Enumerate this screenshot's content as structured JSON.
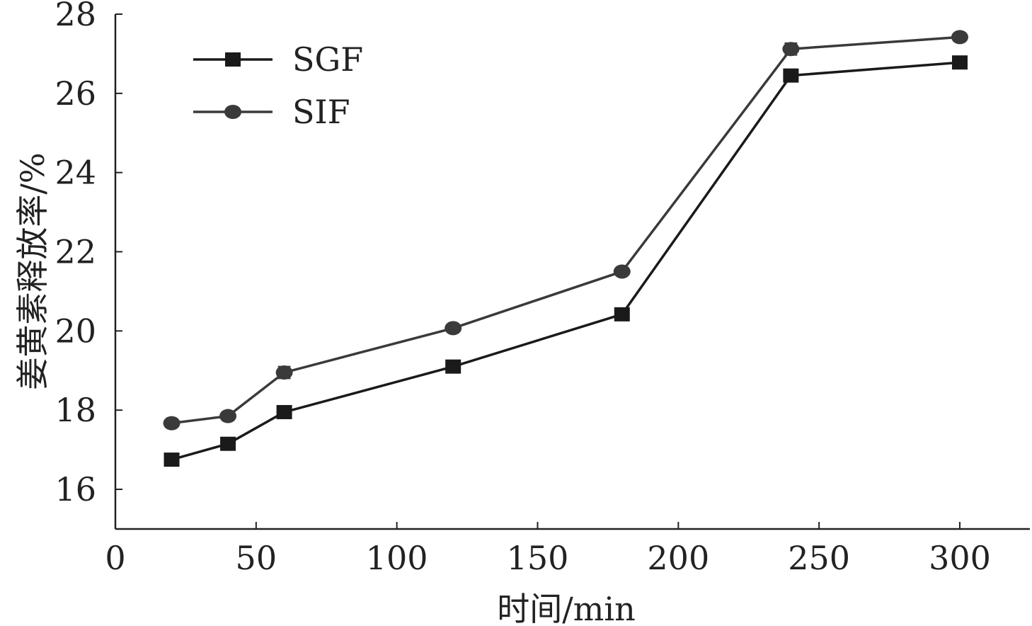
{
  "chart_data": {
    "type": "line",
    "title": "",
    "xlabel": "时间/min",
    "ylabel": "姜黄素释放率/%",
    "xlim": [
      0,
      325
    ],
    "ylim": [
      15,
      28
    ],
    "xticks": [
      0,
      50,
      100,
      150,
      200,
      250,
      300
    ],
    "yticks": [
      16,
      18,
      20,
      22,
      24,
      26,
      28
    ],
    "grid": false,
    "legend_position": "top-left",
    "x": [
      20,
      40,
      60,
      120,
      180,
      240,
      300
    ],
    "series": [
      {
        "name": "SGF",
        "marker": "square",
        "color": "#1a1a1a",
        "values": [
          16.75,
          17.15,
          17.95,
          19.1,
          20.42,
          26.45,
          26.78
        ],
        "errors": [
          0.15,
          0.05,
          0.07,
          0.05,
          0.05,
          0.05,
          0.03
        ]
      },
      {
        "name": "SIF",
        "marker": "circle",
        "color": "#3a3a3a",
        "values": [
          17.67,
          17.85,
          18.95,
          20.07,
          21.5,
          27.12,
          27.42
        ],
        "errors": [
          0.05,
          0.05,
          0.15,
          0.05,
          0.05,
          0.15,
          0.05
        ]
      }
    ]
  }
}
